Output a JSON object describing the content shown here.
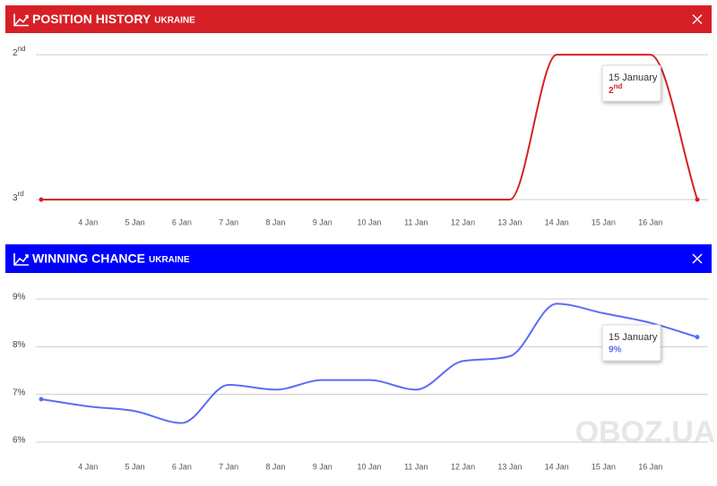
{
  "watermark": "OBOZ.UA",
  "chart_data": [
    {
      "type": "line",
      "title": "POSITION HISTORY",
      "subtitle": "UKRAINE",
      "header_color": "#d71f26",
      "color": "#d71f26",
      "categories": [
        null,
        "4 Jan",
        "5 Jan",
        "6 Jan",
        "7 Jan",
        "8 Jan",
        "9 Jan",
        "10 Jan",
        "11 Jan",
        "12 Jan",
        "13 Jan",
        "14 Jan",
        "15 Jan",
        "16 Jan",
        null
      ],
      "values": [
        3,
        3,
        3,
        3,
        3,
        3,
        3,
        3,
        3,
        3,
        3,
        2,
        2,
        2,
        3
      ],
      "ylim": [
        3,
        1.9
      ],
      "yticks": [
        {
          "value": 2,
          "label": "2nd"
        },
        {
          "value": 3,
          "label": "3rd"
        }
      ],
      "grid": true,
      "tooltip": {
        "title": "15 January",
        "label": "2nd"
      }
    },
    {
      "type": "line",
      "title": "WINNING CHANCE",
      "subtitle": "UKRAINE",
      "header_color": "#0000ff",
      "color": "#5a6cf5",
      "categories": [
        null,
        "4 Jan",
        "5 Jan",
        "6 Jan",
        "7 Jan",
        "8 Jan",
        "9 Jan",
        "10 Jan",
        "11 Jan",
        "12 Jan",
        "13 Jan",
        "14 Jan",
        "15 Jan",
        "16 Jan",
        null
      ],
      "values": [
        6.9,
        6.75,
        6.65,
        6.4,
        7.2,
        7.1,
        7.3,
        7.3,
        7.1,
        7.7,
        7.8,
        8.9,
        8.7,
        8.5,
        8.2
      ],
      "ylim": [
        6,
        9.3
      ],
      "yticks": [
        {
          "value": 6,
          "label": "6%"
        },
        {
          "value": 7,
          "label": "7%"
        },
        {
          "value": 8,
          "label": "8%"
        },
        {
          "value": 9,
          "label": "9%"
        }
      ],
      "grid": true,
      "tooltip": {
        "title": "15 January",
        "label": "9%"
      }
    }
  ]
}
